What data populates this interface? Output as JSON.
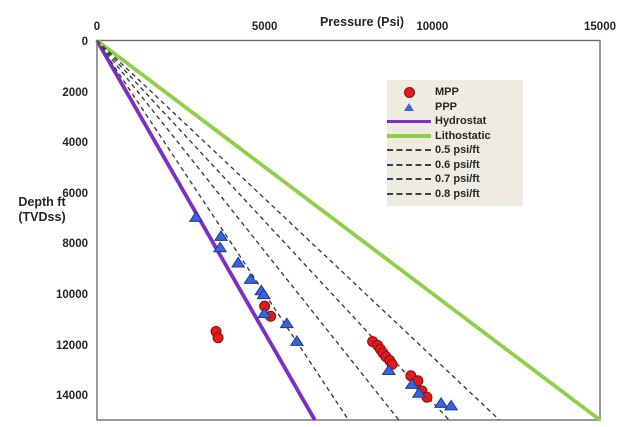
{
  "chart_data": {
    "type": "scatter",
    "title": "Pressure (Psi)",
    "xlabel": "Pressure (Psi)",
    "ylabel": "Depth ft (TVDss)",
    "ylabel_lines": [
      "Depth ft",
      "(TVDss)"
    ],
    "x_axis_position": "top",
    "y_inverted": true,
    "xlim": [
      0,
      15000
    ],
    "ylim": [
      0,
      15000
    ],
    "xticks": [
      0,
      5000,
      10000,
      15000
    ],
    "xtick_labels": [
      "0",
      "5000",
      "10000",
      "15000"
    ],
    "yticks": [
      0,
      2000,
      4000,
      6000,
      8000,
      10000,
      12000,
      14000
    ],
    "ytick_labels": [
      "0",
      "2000",
      "4000",
      "6000",
      "8000",
      "10000",
      "12000",
      "14000"
    ],
    "grid": false,
    "colors": {
      "mpp_fill": "#e31a1a",
      "mpp_edge": "#8b0f0f",
      "ppp_fill": "#3a64dd",
      "ppp_edge": "#1d3a8f",
      "hydrostat": "#7c2fc4",
      "lithostatic": "#8ed04a",
      "gradient_dash": "#404040",
      "legend_bg": "#eeece1",
      "plot_border": "#6e6e6e",
      "text": "#262626"
    },
    "series": [
      {
        "name": "MPP",
        "kind": "scatter",
        "marker": "circle",
        "points": [
          [
            3550,
            11500
          ],
          [
            3610,
            11750
          ],
          [
            5000,
            10500
          ],
          [
            5180,
            10900
          ],
          [
            8220,
            11900
          ],
          [
            8370,
            12050
          ],
          [
            8450,
            12200
          ],
          [
            8530,
            12350
          ],
          [
            8620,
            12500
          ],
          [
            8730,
            12650
          ],
          [
            8800,
            12800
          ],
          [
            9360,
            13250
          ],
          [
            9570,
            13450
          ],
          [
            9690,
            13850
          ],
          [
            9840,
            14100
          ]
        ]
      },
      {
        "name": "PPP",
        "kind": "scatter",
        "marker": "triangle",
        "points": [
          [
            2950,
            7000
          ],
          [
            3700,
            7750
          ],
          [
            3670,
            8200
          ],
          [
            4210,
            8800
          ],
          [
            4580,
            9450
          ],
          [
            4900,
            9900
          ],
          [
            4970,
            10050
          ],
          [
            4990,
            10800
          ],
          [
            5660,
            11200
          ],
          [
            5960,
            11900
          ],
          [
            8700,
            13050
          ],
          [
            9390,
            13600
          ],
          [
            9600,
            13950
          ],
          [
            10260,
            14350
          ],
          [
            10560,
            14450
          ]
        ]
      },
      {
        "name": "Hydrostat",
        "kind": "line",
        "gradient_psi_per_ft": 0.433,
        "points": [
          [
            0,
            0
          ],
          [
            6495,
            15000
          ]
        ]
      },
      {
        "name": "Lithostatic",
        "kind": "line",
        "gradient_psi_per_ft": 1.0,
        "points": [
          [
            0,
            0
          ],
          [
            15000,
            15000
          ]
        ]
      },
      {
        "name": "0.5 psi/ft",
        "kind": "dashed",
        "gradient_psi_per_ft": 0.5,
        "points": [
          [
            0,
            0
          ],
          [
            7500,
            15000
          ]
        ]
      },
      {
        "name": "0.6 psi/ft",
        "kind": "dashed",
        "gradient_psi_per_ft": 0.6,
        "points": [
          [
            0,
            0
          ],
          [
            9000,
            15000
          ]
        ]
      },
      {
        "name": "0.7 psi/ft",
        "kind": "dashed",
        "gradient_psi_per_ft": 0.7,
        "points": [
          [
            0,
            0
          ],
          [
            10500,
            15000
          ]
        ]
      },
      {
        "name": "0.8 psi/ft",
        "kind": "dashed",
        "gradient_psi_per_ft": 0.8,
        "points": [
          [
            0,
            0
          ],
          [
            12000,
            15000
          ]
        ]
      }
    ],
    "legend": {
      "position": "upper-right",
      "items": [
        {
          "label": "MPP",
          "sample": "circle"
        },
        {
          "label": "PPP",
          "sample": "triangle"
        },
        {
          "label": "Hydrostat",
          "sample": "line-hydrostat"
        },
        {
          "label": "Lithostatic",
          "sample": "line-lithostatic"
        },
        {
          "label": "0.5 psi/ft",
          "sample": "dash"
        },
        {
          "label": "0.6 psi/ft",
          "sample": "dash"
        },
        {
          "label": "0.7 psi/ft",
          "sample": "dash"
        },
        {
          "label": "0.8 psi/ft",
          "sample": "dash"
        }
      ]
    }
  }
}
